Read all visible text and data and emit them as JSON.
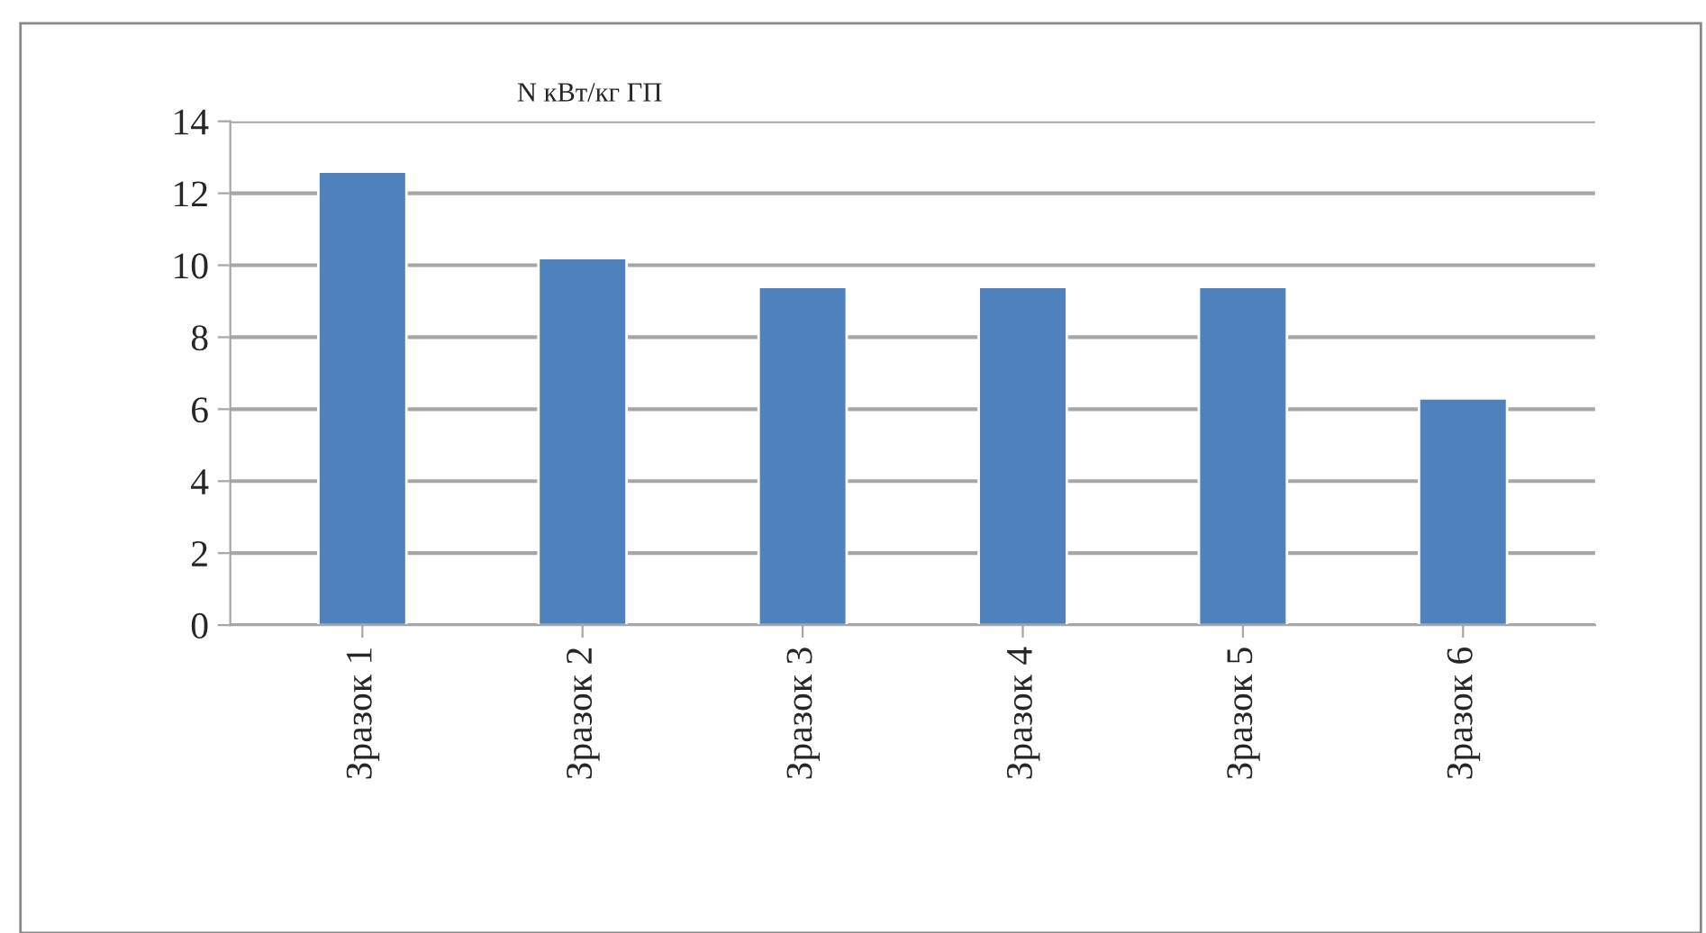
{
  "chart_data": {
    "type": "bar",
    "title": "N кВт/кг ГП",
    "categories": [
      "Зразок 1",
      "Зразок 2",
      "Зразок 3",
      "Зразок 4",
      "Зразок 5",
      "Зразок 6"
    ],
    "values": [
      12.6,
      10.2,
      9.4,
      9.4,
      9.4,
      6.3
    ],
    "color": "#4f81bd",
    "ylim": [
      0,
      14
    ],
    "yticks": [
      0,
      2,
      4,
      6,
      8,
      10,
      12,
      14
    ],
    "grid": "y"
  }
}
